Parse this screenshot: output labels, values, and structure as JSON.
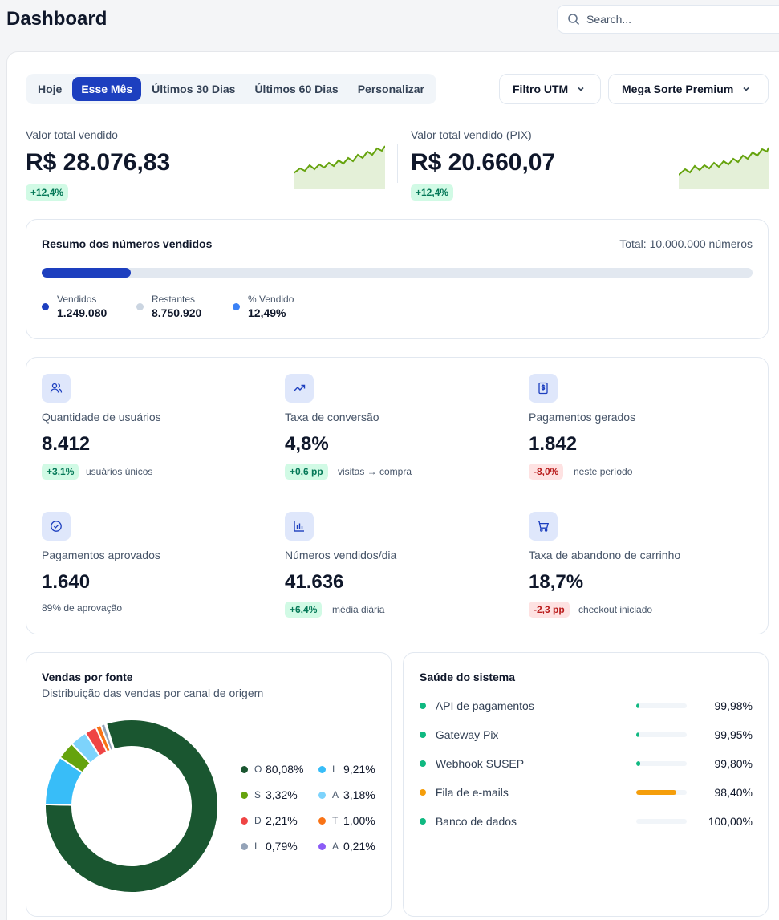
{
  "header": {
    "title": "Dashboard",
    "search_placeholder": "Search..."
  },
  "tabs": [
    {
      "label": "Hoje",
      "active": false
    },
    {
      "label": "Esse Mês",
      "active": true
    },
    {
      "label": "Últimos 30 Dias",
      "active": false
    },
    {
      "label": "Últimos 60 Dias",
      "active": false
    },
    {
      "label": "Personalizar",
      "active": false
    }
  ],
  "filters": {
    "utm": "Filtro UTM",
    "product": "Mega Sorte Premium"
  },
  "kpis": [
    {
      "label": "Valor total vendido",
      "value": "R$ 28.076,83",
      "delta": "+12,4%"
    },
    {
      "label": "Valor total vendido (PIX)",
      "value": "R$ 20.660,07",
      "delta": "+12,4%"
    }
  ],
  "summary": {
    "title": "Resumo dos números vendidos",
    "total": "Total: 10.000.000 números",
    "progress_percent": 12.49,
    "legend": [
      {
        "label": "Vendidos",
        "value": "1.249.080",
        "color": "#1d3fbf"
      },
      {
        "label": "Restantes",
        "value": "8.750.920",
        "color": "#cbd5e1"
      },
      {
        "label": "% Vendido",
        "value": "12,49%",
        "color": "#3b82f6"
      }
    ]
  },
  "stats": [
    {
      "icon": "users-icon",
      "label": "Quantidade de usuários",
      "value": "8.412",
      "badge": "+3,1%",
      "trend": "up",
      "note": "usuários únicos"
    },
    {
      "icon": "trending-up-icon",
      "label": "Taxa de conversão",
      "value": "4,8%",
      "badge": "+0,6 pp",
      "trend": "up",
      "note": "visitas → compra"
    },
    {
      "icon": "receipt-dollar-icon",
      "label": "Pagamentos gerados",
      "value": "1.842",
      "badge": "-8,0%",
      "trend": "down",
      "note": "neste período"
    },
    {
      "icon": "check-circle-icon",
      "label": "Pagamentos aprovados",
      "value": "1.640",
      "badge": "",
      "trend": "none",
      "note": "89% de aprovação"
    },
    {
      "icon": "bar-chart-icon",
      "label": "Números vendidos/dia",
      "value": "41.636",
      "badge": "+6,4%",
      "trend": "up",
      "note": "média diária"
    },
    {
      "icon": "cart-icon",
      "label": "Taxa de abandono de carrinho",
      "value": "18,7%",
      "badge": "-2,3 pp",
      "trend": "down",
      "note": "checkout iniciado"
    }
  ],
  "sources": {
    "title": "Vendas por fonte",
    "subtitle": "Distribuição das vendas por canal de origem"
  },
  "chart_data": {
    "type": "pie",
    "donut": true,
    "slices": [
      {
        "label": "O",
        "value": 80.08,
        "display": "80,08%",
        "color": "#1a5630"
      },
      {
        "label": "I",
        "value": 9.21,
        "display": "9,21%",
        "color": "#38bdf8"
      },
      {
        "label": "S",
        "value": 3.32,
        "display": "3,32%",
        "color": "#65a30d"
      },
      {
        "label": "A",
        "value": 3.18,
        "display": "3,18%",
        "color": "#7dd3fc"
      },
      {
        "label": "D",
        "value": 2.21,
        "display": "2,21%",
        "color": "#ef4444"
      },
      {
        "label": "T",
        "value": 1.0,
        "display": "1,00%",
        "color": "#f97316"
      },
      {
        "label": "I",
        "value": 0.79,
        "display": "0,79%",
        "color": "#94a3b8"
      },
      {
        "label": "A",
        "value": 0.21,
        "display": "0,21%",
        "color": "#8b5cf6"
      }
    ]
  },
  "health": {
    "title": "Saúde do sistema",
    "items": [
      {
        "name": "API de pagamentos",
        "value": "99,98%",
        "fill_fraction": 0.02,
        "dot": "#10b981",
        "bar": "#10b981"
      },
      {
        "name": "Gateway Pix",
        "value": "99,95%",
        "fill_fraction": 0.03,
        "dot": "#10b981",
        "bar": "#10b981"
      },
      {
        "name": "Webhook SUSEP",
        "value": "99,80%",
        "fill_fraction": 0.09,
        "dot": "#10b981",
        "bar": "#10b981"
      },
      {
        "name": "Fila de e-mails",
        "value": "98,40%",
        "fill_fraction": 0.8,
        "dot": "#f59e0b",
        "bar": "#f59e0b"
      },
      {
        "name": "Banco de dados",
        "value": "100,00%",
        "fill_fraction": 0.0,
        "dot": "#10b981",
        "bar": "#10b981"
      }
    ]
  }
}
